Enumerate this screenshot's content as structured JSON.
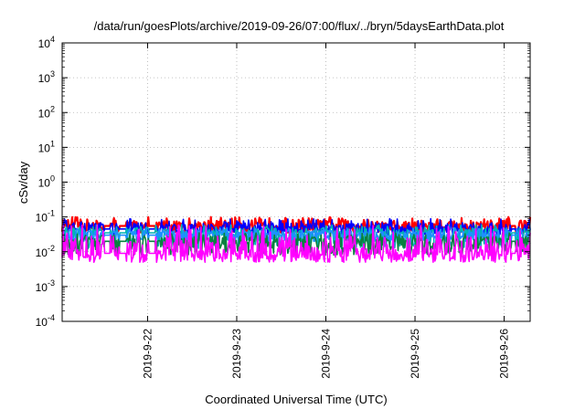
{
  "chart_data": {
    "type": "line",
    "title": "/data/run/goesPlots/archive/2019-09-26/07:00/flux/../bryn/5daysEarthData.plot",
    "xlabel": "Coordinated Universal Time (UTC)",
    "ylabel": "cSv/day",
    "yscale": "log",
    "ylim": [
      0.0001,
      10000
    ],
    "xlim": [
      "2019-09-21 01:00",
      "2019-09-26 07:00"
    ],
    "x_ticks": [
      "2019-9-22",
      "2019-9-23",
      "2019-9-24",
      "2019-9-25",
      "2019-9-26"
    ],
    "x_tick_values": [
      "2019-09-22 00:00",
      "2019-09-23 00:00",
      "2019-09-24 00:00",
      "2019-09-25 00:00",
      "2019-09-26 00:00"
    ],
    "y_ticks": [
      {
        "base": "10",
        "exp": "-4",
        "value": 0.0001
      },
      {
        "base": "10",
        "exp": "-3",
        "value": 0.001
      },
      {
        "base": "10",
        "exp": "-2",
        "value": 0.01
      },
      {
        "base": "10",
        "exp": "-1",
        "value": 0.1
      },
      {
        "base": "10",
        "exp": "0",
        "value": 1
      },
      {
        "base": "10",
        "exp": "1",
        "value": 10
      },
      {
        "base": "10",
        "exp": "2",
        "value": 100
      },
      {
        "base": "10",
        "exp": "3",
        "value": 1000
      },
      {
        "base": "10",
        "exp": "4",
        "value": 10000
      }
    ],
    "grid": true,
    "legend": "none",
    "gaps": [
      [
        "2019-09-21 12:20",
        "2019-09-21 14:00"
      ],
      [
        "2019-09-21 16:30",
        "2019-09-21 18:10"
      ],
      [
        "2019-09-22 00:20",
        "2019-09-22 02:00"
      ],
      [
        "2019-09-26 02:00",
        "2019-09-26 03:10"
      ]
    ],
    "series": [
      {
        "color": "#ff0000",
        "typical": 0.055,
        "low": 0.035,
        "high": 0.1,
        "note_spikes": true
      },
      {
        "color": "#0000ff",
        "typical": 0.045,
        "low": 0.03,
        "high": 0.09
      },
      {
        "color": "#00b4b4",
        "typical": 0.035,
        "low": 0.012,
        "high": 0.06
      },
      {
        "color": "#1e90ff",
        "typical": 0.03,
        "low": 0.02,
        "high": 0.05
      },
      {
        "color": "#0a8040",
        "typical": 0.02,
        "low": 0.008,
        "high": 0.035
      },
      {
        "color": "#ff00ff",
        "typical": 0.009,
        "low": 0.005,
        "high": 0.06
      }
    ]
  }
}
